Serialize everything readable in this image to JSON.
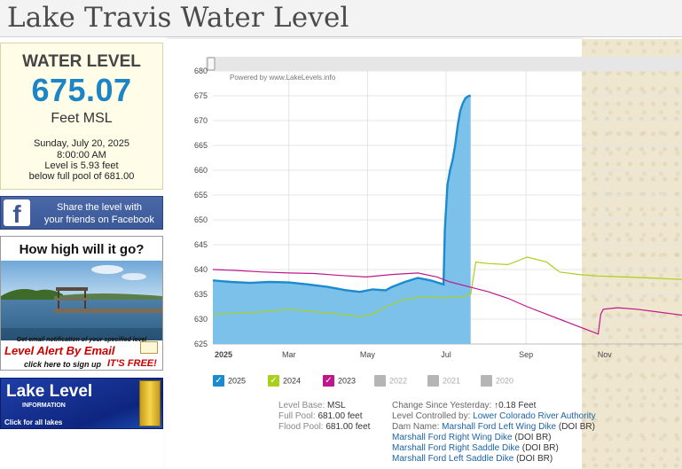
{
  "header": {
    "title": "Lake Travis Water Level"
  },
  "level_box": {
    "label": "WATER LEVEL",
    "value": "675.07",
    "unit": "Feet MSL",
    "date": "Sunday, July 20, 2025",
    "time": "8:00:00 AM",
    "level_is": "Level is 5.93 feet",
    "below": "below full pool of 681.00"
  },
  "facebook": {
    "line1": "Share the level with",
    "line2": "your friends on Facebook"
  },
  "ad": {
    "title": "How high will it go?",
    "small": "Get email notification of your specified level",
    "alert": "Level Alert By Email",
    "signup": "click here to sign up",
    "free": "IT'S FREE!"
  },
  "banner": {
    "title": "Lake Level",
    "sub": "INFORMATION",
    "click": "Click for all lakes"
  },
  "chart": {
    "powered": "Powered by www.LakeLevels.info",
    "year_label": "2025"
  },
  "legend": [
    {
      "label": "2025",
      "color": "#1b8bd0",
      "checked": true
    },
    {
      "label": "2024",
      "color": "#a9d11c",
      "checked": true
    },
    {
      "label": "2023",
      "color": "#c0168c",
      "checked": true
    },
    {
      "label": "2022",
      "color": "#b5b5b5",
      "checked": false
    },
    {
      "label": "2021",
      "color": "#b5b5b5",
      "checked": false
    },
    {
      "label": "2020",
      "color": "#b5b5b5",
      "checked": false
    }
  ],
  "info": {
    "level_base_k": "Level Base:",
    "level_base_v": "MSL",
    "full_pool_k": "Full Pool:",
    "full_pool_v": "681.00 feet",
    "flood_pool_k": "Flood Pool:",
    "flood_pool_v": "681.00 feet",
    "change_k": "Change Since Yesterday:",
    "change_v": "0.18 Feet",
    "controlled_k": "Level Controlled by:",
    "controlled_v": "Lower Colorado River Authority",
    "dam_k": "Dam Name:",
    "dams": [
      {
        "name": "Marshall Ford Left Wing Dike",
        "owner": "(DOI BR)"
      },
      {
        "name": "Marshall Ford Right Wing Dike",
        "owner": "(DOI BR)"
      },
      {
        "name": "Marshall Ford Right Saddle Dike",
        "owner": "(DOI BR)"
      },
      {
        "name": "Marshall Ford Left Saddle Dike",
        "owner": "(DOI BR)"
      }
    ]
  },
  "chart_data": {
    "type": "line",
    "title": "",
    "xlabel": "",
    "ylabel": "",
    "ylim": [
      625,
      680
    ],
    "yticks": [
      625,
      630,
      635,
      640,
      645,
      650,
      655,
      660,
      665,
      670,
      675,
      680
    ],
    "x_unit": "day of year",
    "xlim": [
      1,
      365
    ],
    "xticks": [
      {
        "label": "Mar",
        "x": 60
      },
      {
        "label": "May",
        "x": 121
      },
      {
        "label": "Jul",
        "x": 182
      },
      {
        "label": "Sep",
        "x": 244
      },
      {
        "label": "Nov",
        "x": 305
      }
    ],
    "grid": true,
    "series": [
      {
        "name": "2025",
        "color": "#1b8bd0",
        "fill": true,
        "x": [
          1,
          15,
          30,
          45,
          60,
          75,
          90,
          105,
          115,
          125,
          135,
          140,
          150,
          160,
          170,
          180,
          181,
          183,
          185,
          187,
          189,
          191,
          193,
          195,
          197,
          199,
          201
        ],
        "y": [
          637.8,
          637.5,
          637.3,
          637.5,
          637.4,
          637.0,
          636.5,
          635.8,
          635.5,
          636.0,
          635.8,
          636.5,
          637.5,
          638.3,
          637.8,
          637.0,
          648.0,
          657.0,
          660.0,
          662.0,
          665.0,
          669.0,
          672.0,
          673.5,
          674.5,
          674.9,
          675.07
        ]
      },
      {
        "name": "2024",
        "color": "#a9d11c",
        "fill": false,
        "x": [
          1,
          20,
          40,
          60,
          80,
          100,
          115,
          125,
          135,
          150,
          165,
          180,
          195,
          201,
          205,
          215,
          230,
          245,
          260,
          270,
          285,
          300,
          320,
          340,
          365
        ],
        "y": [
          631.0,
          631.2,
          631.5,
          632.0,
          631.5,
          631.0,
          630.5,
          631.0,
          632.5,
          634.0,
          634.5,
          634.3,
          634.5,
          635.0,
          641.5,
          641.2,
          641.0,
          642.5,
          641.5,
          639.5,
          639.0,
          638.7,
          638.5,
          638.3,
          638.0
        ]
      },
      {
        "name": "2023",
        "color": "#c0168c",
        "fill": false,
        "x": [
          1,
          20,
          40,
          60,
          80,
          100,
          120,
          140,
          160,
          175,
          185,
          200,
          215,
          230,
          245,
          260,
          275,
          290,
          300,
          302,
          304,
          315,
          330,
          345,
          365
        ],
        "y": [
          640.0,
          639.8,
          639.5,
          639.3,
          639.2,
          638.8,
          638.5,
          639.0,
          639.3,
          638.5,
          637.5,
          636.5,
          635.5,
          634.2,
          632.5,
          631.0,
          629.5,
          628.0,
          627.0,
          631.0,
          632.0,
          632.3,
          632.0,
          631.5,
          630.8
        ]
      }
    ]
  }
}
